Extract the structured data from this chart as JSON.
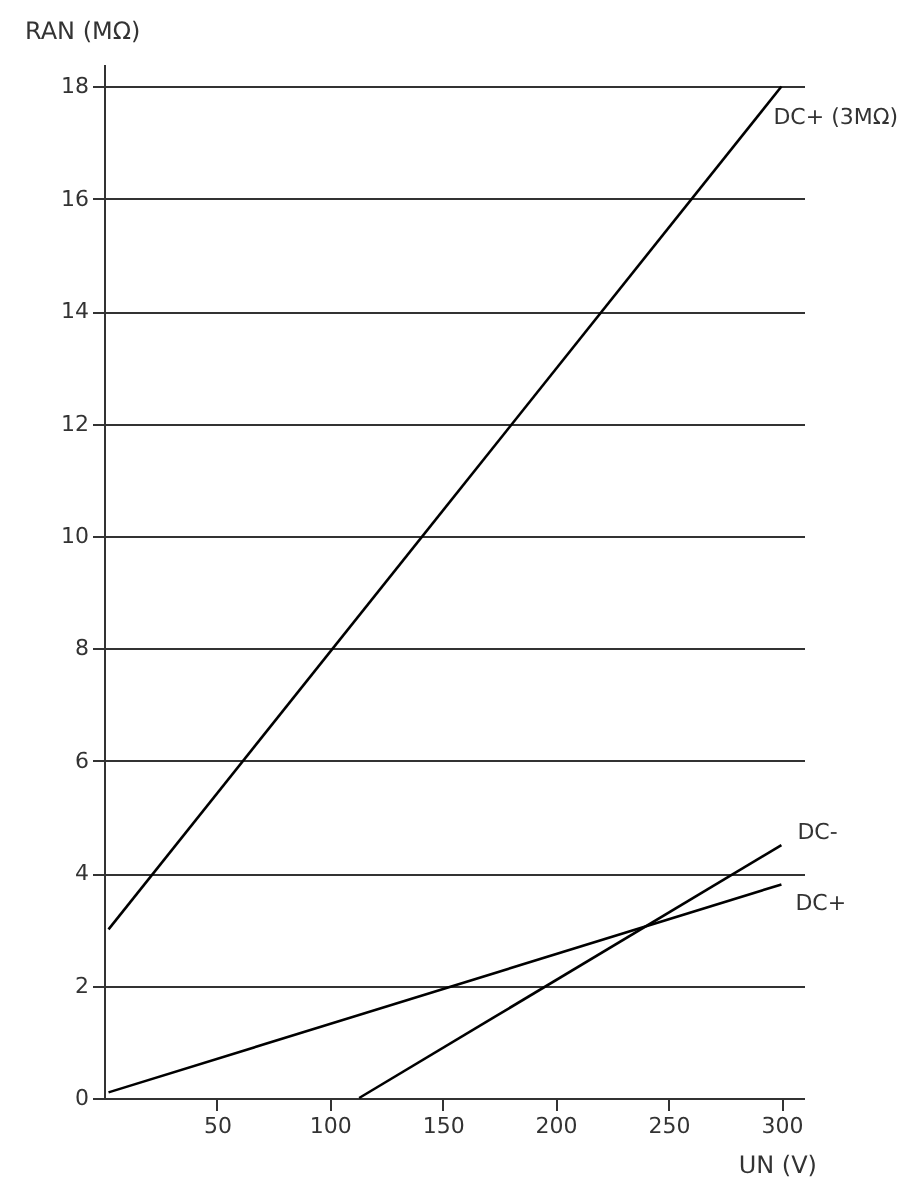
{
  "chart_data": {
    "type": "line",
    "xlabel": "UN (V)",
    "ylabel": "RAN (MΩ)",
    "xlim": [
      0,
      310
    ],
    "ylim": [
      0,
      18.4
    ],
    "xticks": [
      50,
      100,
      150,
      200,
      250,
      300
    ],
    "yticks": [
      0,
      2,
      4,
      6,
      8,
      10,
      12,
      14,
      16,
      18
    ],
    "grid": "y",
    "marker": "none",
    "line_style": "solid",
    "series": [
      {
        "name": "DC+ (3MΩ)",
        "color": "#000000",
        "x": [
          2,
          300
        ],
        "values": [
          3,
          18
        ]
      },
      {
        "name": "DC-",
        "color": "#000000",
        "x": [
          113,
          300
        ],
        "values": [
          0,
          4.5
        ]
      },
      {
        "name": "DC+",
        "color": "#000000",
        "x": [
          2,
          300
        ],
        "values": [
          0.1,
          3.8
        ]
      }
    ]
  }
}
